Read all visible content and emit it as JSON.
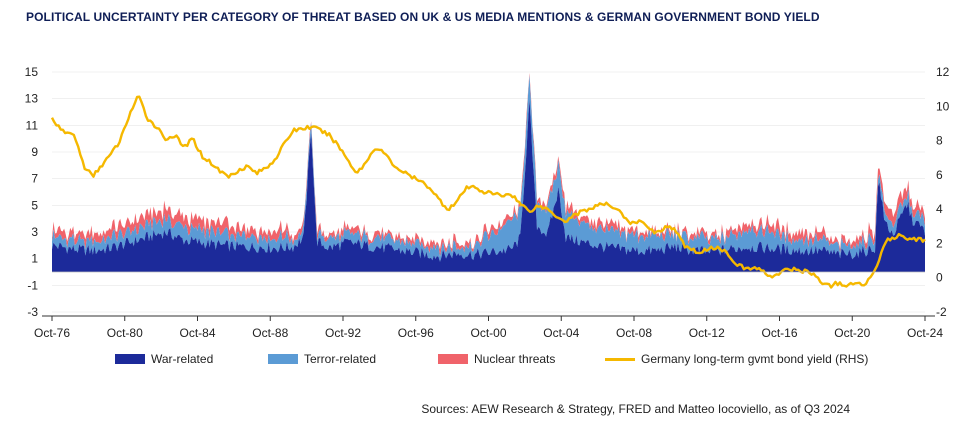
{
  "title": "POLITICAL UNCERTAINTY PER CATEGORY OF THREAT BASED ON UK & US MEDIA MENTIONS & GERMAN GOVERNMENT BOND YIELD",
  "source": "Sources: AEW Research & Strategy, FRED and Matteo Iocoviello, as of Q3 2024",
  "colors": {
    "war": "#1c2a9a",
    "terror": "#5b9bd5",
    "nuclear": "#f0636a",
    "yield": "#f5b800"
  },
  "chart_data": {
    "type": "area",
    "x_ticks": [
      "Oct-76",
      "Oct-80",
      "Oct-84",
      "Oct-88",
      "Oct-92",
      "Oct-96",
      "Oct-00",
      "Oct-04",
      "Oct-08",
      "Oct-12",
      "Oct-16",
      "Oct-20",
      "Oct-24"
    ],
    "y_left": {
      "ticks": [
        "15",
        "13",
        "11",
        "9",
        "7",
        "5",
        "3",
        "1",
        "-1",
        "-3"
      ],
      "range": [
        -3,
        15
      ]
    },
    "y_right": {
      "ticks": [
        "12",
        "10",
        "8",
        "6",
        "4",
        "2",
        "0",
        "-2"
      ],
      "range": [
        -2,
        12
      ]
    },
    "legend_position": "bottom",
    "series": [
      {
        "name": "War-related",
        "type": "stacked-area",
        "axis": "left",
        "points": [
          [
            1976.8,
            2.0
          ],
          [
            1978,
            1.7
          ],
          [
            1979,
            1.6
          ],
          [
            1980,
            1.8
          ],
          [
            1981,
            2.2
          ],
          [
            1982,
            2.6
          ],
          [
            1983,
            3.0
          ],
          [
            1984,
            2.4
          ],
          [
            1985,
            2.2
          ],
          [
            1986,
            2.0
          ],
          [
            1987,
            1.9
          ],
          [
            1988,
            1.9
          ],
          [
            1989,
            1.8
          ],
          [
            1990,
            1.9
          ],
          [
            1990.6,
            2.6
          ],
          [
            1991.0,
            10.8
          ],
          [
            1991.3,
            2.3
          ],
          [
            1992,
            1.8
          ],
          [
            1993,
            2.2
          ],
          [
            1994,
            2.0
          ],
          [
            1995,
            1.8
          ],
          [
            1996,
            1.6
          ],
          [
            1997,
            1.4
          ],
          [
            1998,
            1.2
          ],
          [
            1999,
            1.4
          ],
          [
            2000,
            1.3
          ],
          [
            2001,
            1.5
          ],
          [
            2002,
            1.7
          ],
          [
            2002.5,
            2.5
          ],
          [
            2003.0,
            12.6
          ],
          [
            2003.4,
            3.5
          ],
          [
            2004,
            2.8
          ],
          [
            2004.6,
            6.2
          ],
          [
            2005,
            2.6
          ],
          [
            2006,
            2.2
          ],
          [
            2007,
            1.9
          ],
          [
            2008,
            1.7
          ],
          [
            2009,
            1.6
          ],
          [
            2010,
            1.6
          ],
          [
            2011,
            1.9
          ],
          [
            2012,
            1.6
          ],
          [
            2013,
            1.5
          ],
          [
            2014,
            1.7
          ],
          [
            2015,
            1.9
          ],
          [
            2016,
            1.8
          ],
          [
            2017,
            1.7
          ],
          [
            2018,
            1.6
          ],
          [
            2019,
            1.6
          ],
          [
            2020,
            1.3
          ],
          [
            2021,
            1.4
          ],
          [
            2022,
            1.8
          ],
          [
            2022.2,
            7.3
          ],
          [
            2022.5,
            3.9
          ],
          [
            2023,
            2.8
          ],
          [
            2023.8,
            5.2
          ],
          [
            2024,
            4.0
          ],
          [
            2024.8,
            3.0
          ]
        ]
      },
      {
        "name": "Terror-related",
        "type": "stacked-area",
        "axis": "left",
        "points": [
          [
            1976.8,
            0.7
          ],
          [
            1980,
            0.8
          ],
          [
            1984,
            1.0
          ],
          [
            1988,
            0.8
          ],
          [
            1992,
            0.6
          ],
          [
            1996,
            0.7
          ],
          [
            2000,
            0.6
          ],
          [
            2001.7,
            2.0
          ],
          [
            2002,
            2.0
          ],
          [
            2003,
            2.0
          ],
          [
            2004,
            1.8
          ],
          [
            2005,
            1.9
          ],
          [
            2006,
            1.4
          ],
          [
            2008,
            1.2
          ],
          [
            2010,
            1.0
          ],
          [
            2012,
            0.9
          ],
          [
            2014,
            0.9
          ],
          [
            2015,
            1.3
          ],
          [
            2016,
            1.2
          ],
          [
            2018,
            0.8
          ],
          [
            2020,
            0.6
          ],
          [
            2022,
            0.7
          ],
          [
            2024.8,
            0.7
          ]
        ]
      },
      {
        "name": "Nuclear threats",
        "type": "stacked-area",
        "axis": "left",
        "points": [
          [
            1976.8,
            0.5
          ],
          [
            1980,
            0.6
          ],
          [
            1983,
            0.8
          ],
          [
            1986,
            0.7
          ],
          [
            1990,
            0.4
          ],
          [
            1992,
            0.3
          ],
          [
            1996,
            0.3
          ],
          [
            1998,
            0.4
          ],
          [
            2000,
            0.3
          ],
          [
            2003,
            0.4
          ],
          [
            2006,
            0.5
          ],
          [
            2010,
            0.3
          ],
          [
            2013,
            0.3
          ],
          [
            2017,
            0.6
          ],
          [
            2018,
            0.6
          ],
          [
            2020,
            0.3
          ],
          [
            2022,
            0.6
          ],
          [
            2023,
            0.8
          ],
          [
            2024.8,
            0.5
          ]
        ]
      },
      {
        "name": "Germany long-term gvmt bond yield (RHS)",
        "type": "line",
        "axis": "right",
        "points": [
          [
            1976.8,
            9.3
          ],
          [
            1977.2,
            8.6
          ],
          [
            1978,
            8.3
          ],
          [
            1978.5,
            6.5
          ],
          [
            1979,
            5.9
          ],
          [
            1979.5,
            6.6
          ],
          [
            1980,
            7.2
          ],
          [
            1980.5,
            8.0
          ],
          [
            1981,
            9.5
          ],
          [
            1981.5,
            10.6
          ],
          [
            1982,
            9.3
          ],
          [
            1982.5,
            8.8
          ],
          [
            1983,
            8.1
          ],
          [
            1983.5,
            8.3
          ],
          [
            1984,
            7.6
          ],
          [
            1984.5,
            8.1
          ],
          [
            1985,
            7.1
          ],
          [
            1985.5,
            6.7
          ],
          [
            1986,
            6.2
          ],
          [
            1986.5,
            5.9
          ],
          [
            1987,
            6.3
          ],
          [
            1987.5,
            6.5
          ],
          [
            1988,
            6.1
          ],
          [
            1988.5,
            6.4
          ],
          [
            1989,
            6.9
          ],
          [
            1990,
            8.6
          ],
          [
            1991,
            8.8
          ],
          [
            1991.5,
            8.6
          ],
          [
            1992,
            8.3
          ],
          [
            1992.5,
            7.7
          ],
          [
            1993,
            6.9
          ],
          [
            1993.5,
            6.1
          ],
          [
            1994,
            6.7
          ],
          [
            1994.5,
            7.6
          ],
          [
            1995,
            7.3
          ],
          [
            1995.5,
            6.6
          ],
          [
            1996,
            6.2
          ],
          [
            1996.5,
            5.9
          ],
          [
            1997,
            5.6
          ],
          [
            1997.5,
            5.3
          ],
          [
            1998,
            4.6
          ],
          [
            1998.5,
            4.0
          ],
          [
            1999,
            4.4
          ],
          [
            1999.5,
            5.2
          ],
          [
            2000,
            5.3
          ],
          [
            2000.5,
            5.0
          ],
          [
            2001,
            4.9
          ],
          [
            2001.5,
            4.8
          ],
          [
            2002,
            4.9
          ],
          [
            2002.5,
            4.3
          ],
          [
            2003,
            3.9
          ],
          [
            2003.5,
            4.2
          ],
          [
            2004,
            4.0
          ],
          [
            2004.5,
            3.6
          ],
          [
            2005,
            3.3
          ],
          [
            2005.5,
            3.7
          ],
          [
            2006,
            3.9
          ],
          [
            2006.5,
            4.1
          ],
          [
            2007,
            4.3
          ],
          [
            2007.5,
            4.2
          ],
          [
            2008,
            3.9
          ],
          [
            2008.5,
            3.1
          ],
          [
            2009,
            3.3
          ],
          [
            2009.5,
            3.0
          ],
          [
            2010,
            2.6
          ],
          [
            2010.5,
            3.0
          ],
          [
            2011,
            2.8
          ],
          [
            2011.5,
            1.9
          ],
          [
            2012,
            1.6
          ],
          [
            2012.5,
            1.5
          ],
          [
            2013,
            1.8
          ],
          [
            2013.5,
            1.7
          ],
          [
            2014,
            1.3
          ],
          [
            2014.5,
            0.7
          ],
          [
            2015,
            0.5
          ],
          [
            2015.5,
            0.6
          ],
          [
            2016,
            0.2
          ],
          [
            2016.5,
            0.1
          ],
          [
            2017,
            0.4
          ],
          [
            2017.5,
            0.5
          ],
          [
            2018,
            0.4
          ],
          [
            2018.5,
            0.3
          ],
          [
            2019,
            -0.2
          ],
          [
            2019.5,
            -0.5
          ],
          [
            2020,
            -0.3
          ],
          [
            2020.5,
            -0.5
          ],
          [
            2021,
            -0.3
          ],
          [
            2021.5,
            -0.4
          ],
          [
            2022,
            0.5
          ],
          [
            2022.5,
            1.9
          ],
          [
            2022.8,
            2.3
          ],
          [
            2023,
            2.3
          ],
          [
            2023.5,
            2.5
          ],
          [
            2023.8,
            2.3
          ],
          [
            2024,
            2.3
          ],
          [
            2024.8,
            2.2
          ]
        ]
      }
    ]
  }
}
